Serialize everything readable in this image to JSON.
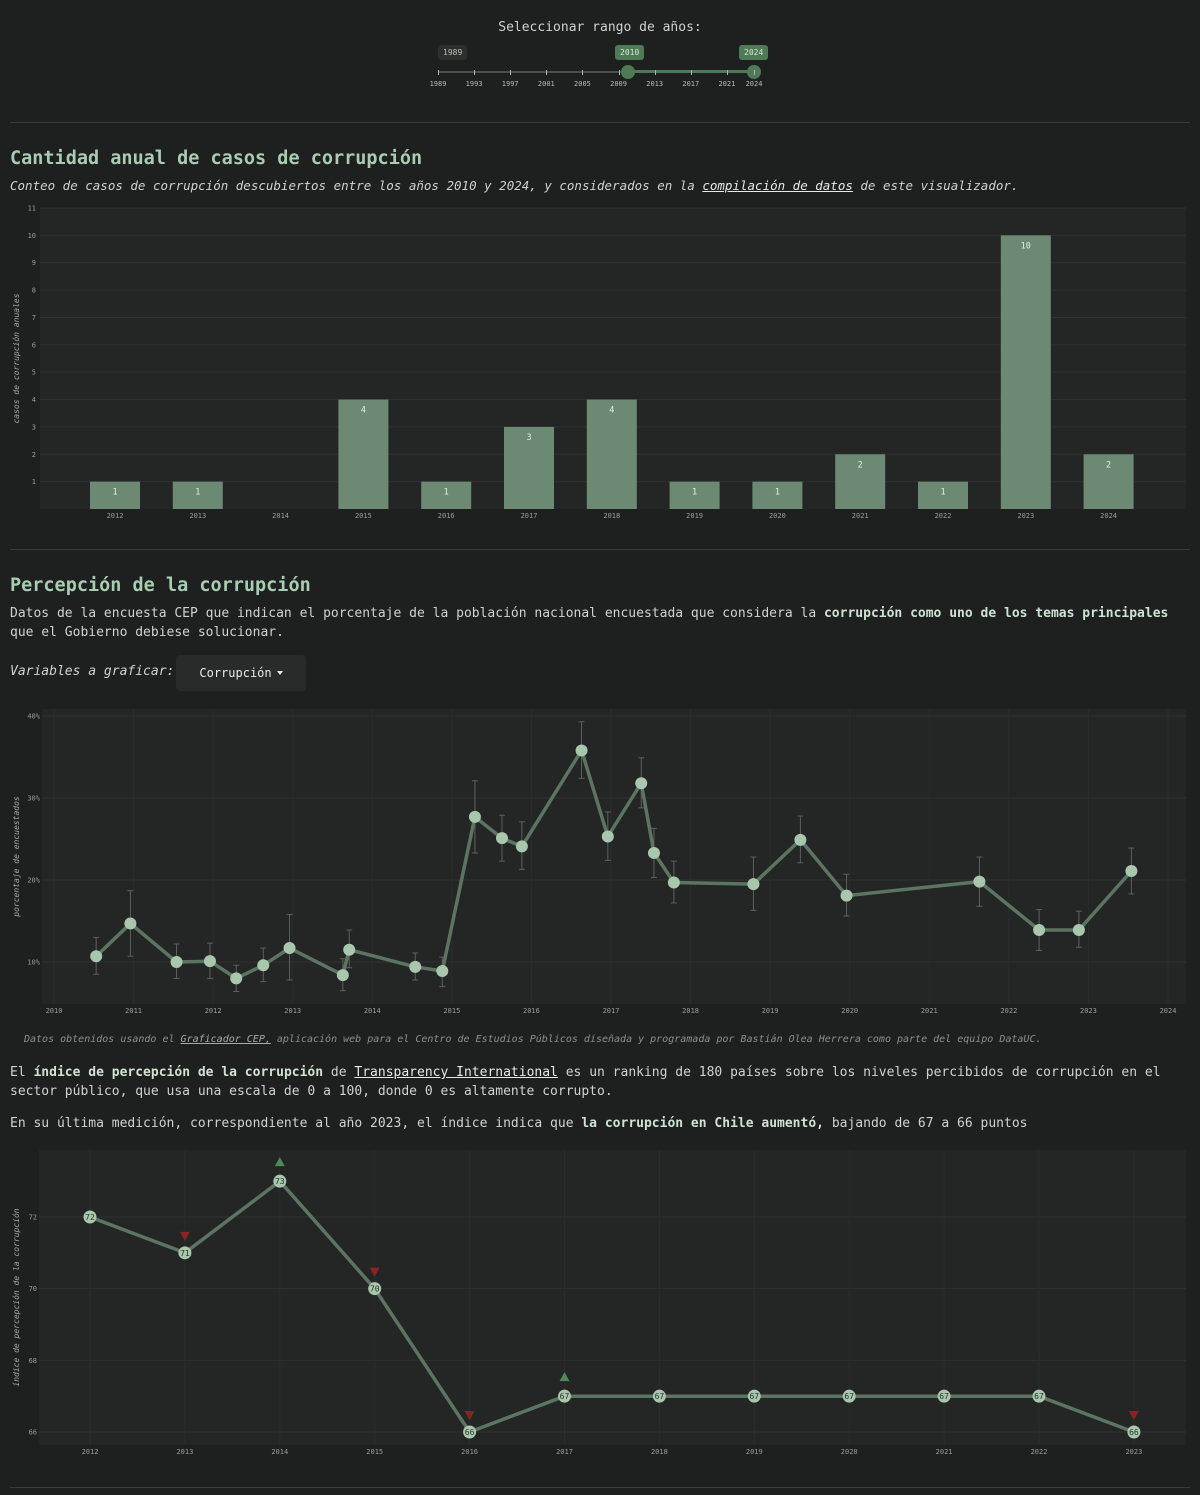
{
  "range_slider": {
    "title": "Seleccionar rango de años:",
    "min_label": "1989",
    "start_label": "2010",
    "end_label": "2024",
    "ticks": [
      "1989",
      "1993",
      "1997",
      "2001",
      "2005",
      "2009",
      "2013",
      "2017",
      "2021",
      "2024"
    ],
    "min": 1989,
    "max": 2024,
    "selected": [
      2010,
      2024
    ]
  },
  "section_cases": {
    "title": "Cantidad anual de casos de corrupción",
    "subtitle_pre": "Conteo de casos de corrupción descubiertos entre los años 2010 y 2024, y considerados en la ",
    "subtitle_link": "compilación de datos",
    "subtitle_post": " de este visualizador."
  },
  "section_perception": {
    "title": "Percepción de la corrupción",
    "para_pre": "Datos de la encuesta CEP que indican el porcentaje de la población nacional encuestada que considera la ",
    "para_bold": "corrupción como uno de los temas principales",
    "para_post": " que el Gobierno debiese solucionar.",
    "variables_label": "Variables a graficar:",
    "variables_button": "Corrupción",
    "source_pre": "Datos obtenidos usando el ",
    "source_link": "Graficador CEP,",
    "source_post": " aplicación web para el Centro de Estudios Públicos diseñada y programada por Bastián Olea Herrera como parte del equipo DataUC."
  },
  "section_ti": {
    "p1_pre": "El ",
    "p1_bold": "índice de percepción de la corrupción",
    "p1_mid": " de ",
    "p1_link": "Transparency International",
    "p1_post": " es un ranking de 180 países sobre los niveles percibidos de corrupción en el sector público, que usa una escala de 0 a 100, donde 0 es altamente corrupto.",
    "p2_pre": "En su última medición, correspondiente al año 2023, el índice indica que ",
    "p2_bold": "la corrupción en Chile aumentó,",
    "p2_post": " bajando de 67 a 66 puntos"
  },
  "colors": {
    "accent": "#a9cdb0",
    "bar": "#6c8a73",
    "line": "#5b7562",
    "point": "#a8c7ad",
    "up": "#4e8a58",
    "down": "#8a2424",
    "panel": "#232625",
    "grid": "#2e3230"
  },
  "chart_data": [
    {
      "type": "bar",
      "ylabel": "casos de corrupción anuales",
      "ylim": [
        0,
        11
      ],
      "yticks": [
        "1",
        "2",
        "3",
        "4",
        "5",
        "6",
        "7",
        "8",
        "9",
        "10",
        "11"
      ],
      "categories": [
        "2012",
        "2013",
        "2014",
        "2015",
        "2016",
        "2017",
        "2018",
        "2019",
        "2020",
        "2021",
        "2022",
        "2023",
        "2024"
      ],
      "values": [
        1,
        1,
        0,
        4,
        1,
        3,
        4,
        1,
        1,
        2,
        1,
        10,
        2
      ],
      "labels": [
        "1",
        "1",
        "",
        "4",
        "1",
        "3",
        "4",
        "1",
        "1",
        "2",
        "1",
        "10",
        "2"
      ]
    },
    {
      "type": "line",
      "ylabel": "porcentaje de encuestados",
      "ylim": [
        5,
        40
      ],
      "yticks": [
        {
          "value": 10,
          "label": "10%"
        },
        {
          "value": 20,
          "label": "20%"
        },
        {
          "value": 30,
          "label": "30%"
        },
        {
          "value": 40,
          "label": "40%"
        }
      ],
      "xlim": [
        2010,
        2024
      ],
      "xticks": [
        "2010",
        "2011",
        "2012",
        "2013",
        "2014",
        "2015",
        "2016",
        "2017",
        "2018",
        "2019",
        "2020",
        "2021",
        "2022",
        "2023",
        "2024"
      ],
      "points": [
        {
          "x": 2010.53,
          "y": 10.7,
          "lo": 8.5,
          "hi": 13.0
        },
        {
          "x": 2010.96,
          "y": 14.7,
          "lo": 10.7,
          "hi": 18.7
        },
        {
          "x": 2011.54,
          "y": 10.0,
          "lo": 8.0,
          "hi": 12.2
        },
        {
          "x": 2011.96,
          "y": 10.1,
          "lo": 8.0,
          "hi": 12.3
        },
        {
          "x": 2012.29,
          "y": 8.0,
          "lo": 6.4,
          "hi": 9.6
        },
        {
          "x": 2012.63,
          "y": 9.6,
          "lo": 7.6,
          "hi": 11.7
        },
        {
          "x": 2012.96,
          "y": 11.7,
          "lo": 7.8,
          "hi": 15.8
        },
        {
          "x": 2013.63,
          "y": 8.4,
          "lo": 6.5,
          "hi": 10.4
        },
        {
          "x": 2013.71,
          "y": 11.5,
          "lo": 9.3,
          "hi": 13.9
        },
        {
          "x": 2014.54,
          "y": 9.4,
          "lo": 7.8,
          "hi": 11.1
        },
        {
          "x": 2014.88,
          "y": 8.9,
          "lo": 7.0,
          "hi": 10.6
        },
        {
          "x": 2015.29,
          "y": 27.7,
          "lo": 23.3,
          "hi": 32.1
        },
        {
          "x": 2015.63,
          "y": 25.1,
          "lo": 22.3,
          "hi": 27.9
        },
        {
          "x": 2015.88,
          "y": 24.1,
          "lo": 21.3,
          "hi": 27.1
        },
        {
          "x": 2016.63,
          "y": 35.8,
          "lo": 32.4,
          "hi": 39.3
        },
        {
          "x": 2016.96,
          "y": 25.3,
          "lo": 22.4,
          "hi": 28.3
        },
        {
          "x": 2017.38,
          "y": 31.8,
          "lo": 28.8,
          "hi": 34.9
        },
        {
          "x": 2017.54,
          "y": 23.3,
          "lo": 20.3,
          "hi": 26.3
        },
        {
          "x": 2017.79,
          "y": 19.7,
          "lo": 17.2,
          "hi": 22.3
        },
        {
          "x": 2018.79,
          "y": 19.5,
          "lo": 16.3,
          "hi": 22.8
        },
        {
          "x": 2019.38,
          "y": 24.9,
          "lo": 22.1,
          "hi": 27.8
        },
        {
          "x": 2019.96,
          "y": 18.1,
          "lo": 15.6,
          "hi": 20.7
        },
        {
          "x": 2021.63,
          "y": 19.8,
          "lo": 16.8,
          "hi": 22.8
        },
        {
          "x": 2022.38,
          "y": 13.9,
          "lo": 11.4,
          "hi": 16.4
        },
        {
          "x": 2022.88,
          "y": 13.9,
          "lo": 11.8,
          "hi": 16.2
        },
        {
          "x": 2023.54,
          "y": 21.1,
          "lo": 18.3,
          "hi": 23.9
        }
      ]
    },
    {
      "type": "line",
      "ylabel": "índice de percepción de la corrupción",
      "ylim": [
        65.8,
        73.9
      ],
      "yticks": [
        "66",
        "68",
        "70",
        "72"
      ],
      "categories": [
        "2012",
        "2013",
        "2014",
        "2015",
        "2016",
        "2017",
        "2018",
        "2019",
        "2020",
        "2021",
        "2022",
        "2023"
      ],
      "values": [
        72,
        71,
        73,
        70,
        66,
        67,
        67,
        67,
        67,
        67,
        67,
        66
      ],
      "labels": [
        "72",
        "71",
        "73",
        "70",
        "66",
        "67",
        "67",
        "67",
        "67",
        "67",
        "67",
        "66"
      ],
      "change": [
        "",
        "down",
        "up",
        "down",
        "down",
        "up",
        "",
        "",
        "",
        "",
        "",
        "down"
      ]
    }
  ]
}
